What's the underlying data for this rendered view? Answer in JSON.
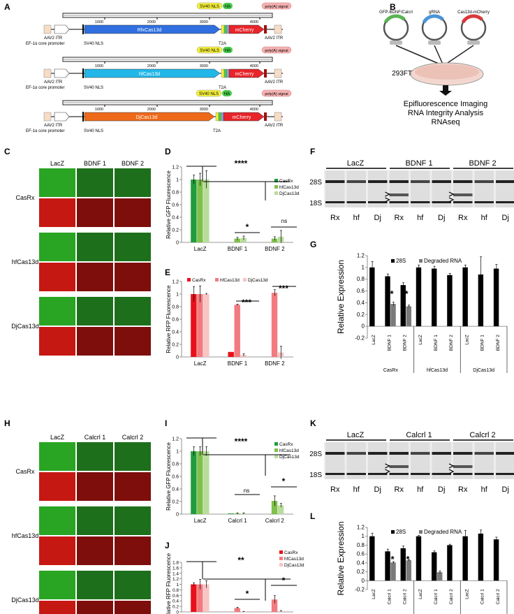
{
  "colors": {
    "rfx": "#2f6fe0",
    "hf": "#22b7e8",
    "dj": "#ee6a1a",
    "mcherry": "#e8252a",
    "sv40": "#f4f03a",
    "ha": "#46c94a",
    "polya": "#f6b2b2",
    "crx": "#1f9d3a",
    "hfc": "#7ec04a",
    "djc": "#b8dd9a",
    "rcrx": "#e8101a",
    "rhf": "#f27b80",
    "rdj": "#f8c4c4",
    "green_tile": "#2aa423",
    "red_tile": "#c61812",
    "dark_green": "#1e6f1b",
    "dark_red": "#7e0e0c"
  },
  "panels": {
    "A": "A",
    "B": "B",
    "C": "C",
    "D": "D",
    "E": "E",
    "F": "F",
    "G": "G",
    "H": "H",
    "I": "I",
    "J": "J",
    "K": "K",
    "L": "L"
  },
  "constructs": [
    {
      "gene": "RfxCas13d",
      "ticks": [
        "1000",
        "2000",
        "3000",
        "4000"
      ],
      "sv40": "SV40 NLS",
      "ha": "HA",
      "polya": "poly(A) signal",
      "mcherry": "mCherry",
      "t2a": "T2A",
      "itr5": "AAV2 ITR",
      "promoter": "EF-1α core promoter",
      "nls": "SV40 NLS",
      "itr3": "AAV2 ITR",
      "gene_color": "rfx"
    },
    {
      "gene": "hfCas13d",
      "ticks": [
        "1000",
        "2000",
        "3000",
        "4000"
      ],
      "sv40": "SV40 NLS",
      "ha": "HA",
      "polya": "poly(A) signal",
      "mcherry": "mCherry",
      "t2a": "T2A",
      "itr5": "AAV2 ITR",
      "promoter": "EF-1α core promoter",
      "nls": "SV40 NLS",
      "itr3": "AAV2 ITR",
      "gene_color": "hf"
    },
    {
      "gene": "DjCas13d",
      "ticks": [
        "1000",
        "2000",
        "3000",
        "4000"
      ],
      "sv40": "SV40 NLS",
      "ha": "HA",
      "polya": "poly(A) signal",
      "mcherry": "mCherry",
      "t2a": "T2A",
      "itr5": "AAV2 ITR",
      "promoter": "EF-1α core promoter",
      "nls": "SV40 NLS",
      "itr3": "AAV2 ITR",
      "gene_color": "dj"
    }
  ],
  "schematic": {
    "plasmids": [
      "GFP-BDNF/Calcrl",
      "gRNA",
      "Cas13d-mCherry"
    ],
    "cells": "293FT",
    "readouts": [
      "Epifluorescence Imaging",
      "RNA Integrity Analysis",
      "RNAseq"
    ]
  },
  "micro_top": {
    "columns": [
      "LacZ",
      "BDNF 1",
      "BDNF 2"
    ],
    "rows": [
      "CasRx",
      "hfCas13d",
      "DjCas13d"
    ]
  },
  "micro_bottom": {
    "columns": [
      "LacZ",
      "Calcrl 1",
      "Calcrl 2"
    ],
    "rows": [
      "CasRx",
      "hfCas13d",
      "DjCas13d"
    ]
  },
  "gel_top": {
    "groups": [
      "LacZ",
      "BDNF 1",
      "BDNF 2"
    ],
    "lanes": [
      "Rx",
      "hf",
      "Dj",
      "Rx",
      "hf",
      "Dj",
      "Rx",
      "hf",
      "Dj"
    ],
    "markers": [
      "28S",
      "18S"
    ]
  },
  "gel_bottom": {
    "groups": [
      "LacZ",
      "Calcrl 1",
      "Calcrl 2"
    ],
    "lanes": [
      "Rx",
      "hf",
      "Dj",
      "Rx",
      "hf",
      "Dj",
      "Rx",
      "hf",
      "Dj"
    ],
    "markers": [
      "28S",
      "18S"
    ]
  },
  "chart_data": [
    {
      "id": "D",
      "type": "bar",
      "ylabel": "Relative GFP Fluorescence",
      "categories": [
        "LacZ",
        "BDNF 1",
        "BDNF 2"
      ],
      "ylim": [
        0,
        1.2
      ],
      "yticks": [
        "0",
        "0.2",
        "0.4",
        "0.6",
        "0.8",
        "1",
        "1.2"
      ],
      "series": [
        {
          "name": "CasRx",
          "values": [
            1.0,
            0.0,
            0.0
          ],
          "errors": [
            0.07,
            0,
            0
          ],
          "color": "crx"
        },
        {
          "name": "hfCas13d",
          "values": [
            1.0,
            0.06,
            0.06
          ],
          "errors": [
            0.1,
            0.02,
            0.03
          ],
          "color": "hfc"
        },
        {
          "name": "DjCas13d",
          "values": [
            1.0,
            0.07,
            0.09
          ],
          "errors": [
            0.14,
            0.03,
            0.1
          ],
          "color": "djc"
        }
      ],
      "annotations": [
        "****",
        "*",
        "ns"
      ]
    },
    {
      "id": "E",
      "type": "bar",
      "ylabel": "Relative RFP Fluorescence",
      "categories": [
        "LacZ",
        "BDNF 1",
        "BDNF 2"
      ],
      "ylim": [
        0,
        1.2
      ],
      "yticks": [
        "0",
        "0.2",
        "0.4",
        "0.6",
        "0.8",
        "1",
        "1.2"
      ],
      "series": [
        {
          "name": "CasRx",
          "values": [
            1.0,
            0.08,
            0.0
          ],
          "errors": [
            0.12,
            0,
            0
          ],
          "color": "rcrx"
        },
        {
          "name": "hfCas13d",
          "values": [
            1.0,
            0.83,
            1.02
          ],
          "errors": [
            0.13,
            0.01,
            0.05
          ],
          "color": "rhf"
        },
        {
          "name": "DjCas13d",
          "values": [
            1.0,
            0.03,
            0.07
          ],
          "errors": [
            0.01,
            0.02,
            0.1
          ],
          "color": "rdj"
        }
      ],
      "annotations": [
        "***",
        "***"
      ]
    },
    {
      "id": "G",
      "type": "bar",
      "ylabel": "Relative Expression",
      "categories": [
        "LacZ",
        "BDNF 1",
        "BDNF 2",
        "LacZ",
        "BDNF 1",
        "BDNF 2",
        "LacZ",
        "BDNF 1",
        "BDNF 2"
      ],
      "groups": [
        "CasRx",
        "hfCas13d",
        "DjCas13d"
      ],
      "ylim": [
        -0.2,
        1.2
      ],
      "yticks": [
        "-0.2",
        "0",
        "0.2",
        "0.4",
        "0.6",
        "0.8",
        "1",
        "1.2"
      ],
      "series": [
        {
          "name": "28S",
          "values": [
            1.0,
            0.85,
            0.7,
            1.0,
            0.98,
            0.87,
            1.0,
            0.88,
            0.98
          ],
          "errors": [
            0.1,
            0.04,
            0.04,
            0.04,
            0.04,
            0.03,
            0.04,
            0.3,
            0.07
          ],
          "color": "#000000"
        },
        {
          "name": "Degraded RNA",
          "values": [
            0,
            0.38,
            0.34,
            0,
            0,
            0,
            0,
            0,
            0
          ],
          "errors": [
            0,
            0.03,
            0.02,
            0,
            0,
            0,
            0,
            0,
            0
          ],
          "color": "#7a7a7a"
        }
      ],
      "annotations": [
        "*",
        "*"
      ]
    },
    {
      "id": "I",
      "type": "bar",
      "ylabel": "Relative GFP Fluorescence",
      "categories": [
        "LacZ",
        "Calcrl 1",
        "Calcrl 2"
      ],
      "ylim": [
        0,
        1.2
      ],
      "yticks": [
        "0",
        "0.2",
        "0.4",
        "0.6",
        "0.8",
        "1",
        "1.2"
      ],
      "series": [
        {
          "name": "CasRx",
          "values": [
            1.0,
            0.01,
            0.0
          ],
          "errors": [
            0.07,
            0,
            0
          ],
          "color": "crx"
        },
        {
          "name": "hfCas13d",
          "values": [
            1.0,
            0.01,
            0.21
          ],
          "errors": [
            0.07,
            0.01,
            0.08
          ],
          "color": "hfc"
        },
        {
          "name": "DjCas13d",
          "values": [
            1.0,
            0.01,
            0.14
          ],
          "errors": [
            0.07,
            0.01,
            0.03
          ],
          "color": "djc"
        }
      ],
      "annotations": [
        "****",
        "ns",
        "*"
      ]
    },
    {
      "id": "J",
      "type": "bar",
      "ylabel": "Relative RFP Fluorescence",
      "categories": [
        "LacZ",
        "Calcrl 1",
        "Calcrl 2"
      ],
      "ylim": [
        0,
        1.8
      ],
      "yticks": [
        "0",
        "0.2",
        "0.4",
        "0.6",
        "0.8",
        "1",
        "1.2",
        "1.4",
        "1.6",
        "1.8"
      ],
      "series": [
        {
          "name": "CasRx",
          "values": [
            1.0,
            0.0,
            0.0
          ],
          "errors": [
            0.06,
            0,
            0
          ],
          "color": "rcrx"
        },
        {
          "name": "hfCas13d",
          "values": [
            1.0,
            0.14,
            0.45
          ],
          "errors": [
            0.18,
            0.03,
            0.14
          ],
          "color": "rhf"
        },
        {
          "name": "DjCas13d",
          "values": [
            1.0,
            0.01,
            0.03
          ],
          "errors": [
            0.13,
            0.01,
            0.02
          ],
          "color": "rdj"
        }
      ],
      "annotations": [
        "**",
        "*",
        "*"
      ]
    },
    {
      "id": "L",
      "type": "bar",
      "ylabel": "Relative Expression",
      "categories": [
        "LacZ",
        "Calcrl 1",
        "Calcrl 2",
        "LacZ",
        "Calcrl 1",
        "Calcrl 2",
        "LacZ",
        "Calcrl 1",
        "Calcrl 2"
      ],
      "groups": [
        "CasRx",
        "hfCas13d",
        "DjCas13d"
      ],
      "ylim": [
        -0.2,
        1.2
      ],
      "yticks": [
        "-0.2",
        "0",
        "0.2",
        "0.4",
        "0.6",
        "0.8",
        "1",
        "1.2"
      ],
      "series": [
        {
          "name": "28S",
          "values": [
            1.0,
            0.66,
            0.73,
            1.0,
            0.64,
            0.8,
            1.0,
            1.06,
            0.93
          ],
          "errors": [
            0.07,
            0.05,
            0.05,
            0.02,
            0.03,
            0.02,
            0.13,
            0.08,
            0.05
          ],
          "color": "#000000"
        },
        {
          "name": "Degraded RNA",
          "values": [
            0,
            0.41,
            0.46,
            0,
            0.19,
            0,
            0,
            0,
            0
          ],
          "errors": [
            0,
            0.02,
            0.01,
            0,
            0.03,
            0,
            0,
            0,
            0
          ],
          "color": "#7a7a7a"
        }
      ],
      "annotations": [
        "*",
        "*",
        "*"
      ]
    }
  ]
}
